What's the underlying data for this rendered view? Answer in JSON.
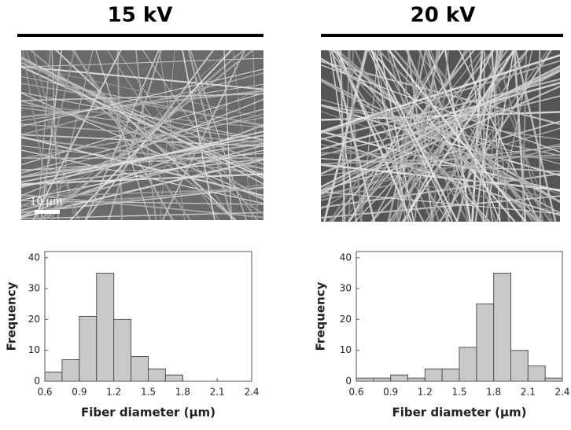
{
  "chart_data": [
    {
      "type": "histogram",
      "title": "15 kV",
      "scale_bar": "10 µm",
      "bins": [
        0.6,
        0.75,
        0.9,
        1.05,
        1.2,
        1.35,
        1.5,
        1.65,
        1.8
      ],
      "values": [
        3,
        7,
        21,
        35,
        20,
        8,
        4,
        2
      ],
      "color": "#c9c9c9",
      "x_label": "Fiber diameter (µm)",
      "y_label": "Frequency",
      "xlim": [
        0.6,
        2.4
      ],
      "xticks": [
        0.6,
        0.9,
        1.2,
        1.5,
        1.8,
        2.1,
        2.4
      ],
      "ylim": [
        0,
        42
      ],
      "yticks": [
        0,
        10,
        20,
        30,
        40
      ]
    },
    {
      "type": "histogram",
      "title": "20 kV",
      "bins": [
        0.6,
        0.75,
        0.9,
        1.05,
        1.2,
        1.35,
        1.5,
        1.65,
        1.8,
        1.95,
        2.1,
        2.25,
        2.4
      ],
      "values": [
        1,
        1,
        2,
        1,
        4,
        4,
        11,
        25,
        35,
        10,
        5,
        1
      ],
      "color": "#c9c9c9",
      "x_label": "Fiber diameter (µm)",
      "y_label": "Frequency",
      "xlim": [
        0.6,
        2.4
      ],
      "xticks": [
        0.6,
        0.9,
        1.2,
        1.5,
        1.8,
        2.1,
        2.4
      ],
      "ylim": [
        0,
        42
      ],
      "yticks": [
        0,
        10,
        20,
        30,
        40
      ]
    }
  ]
}
